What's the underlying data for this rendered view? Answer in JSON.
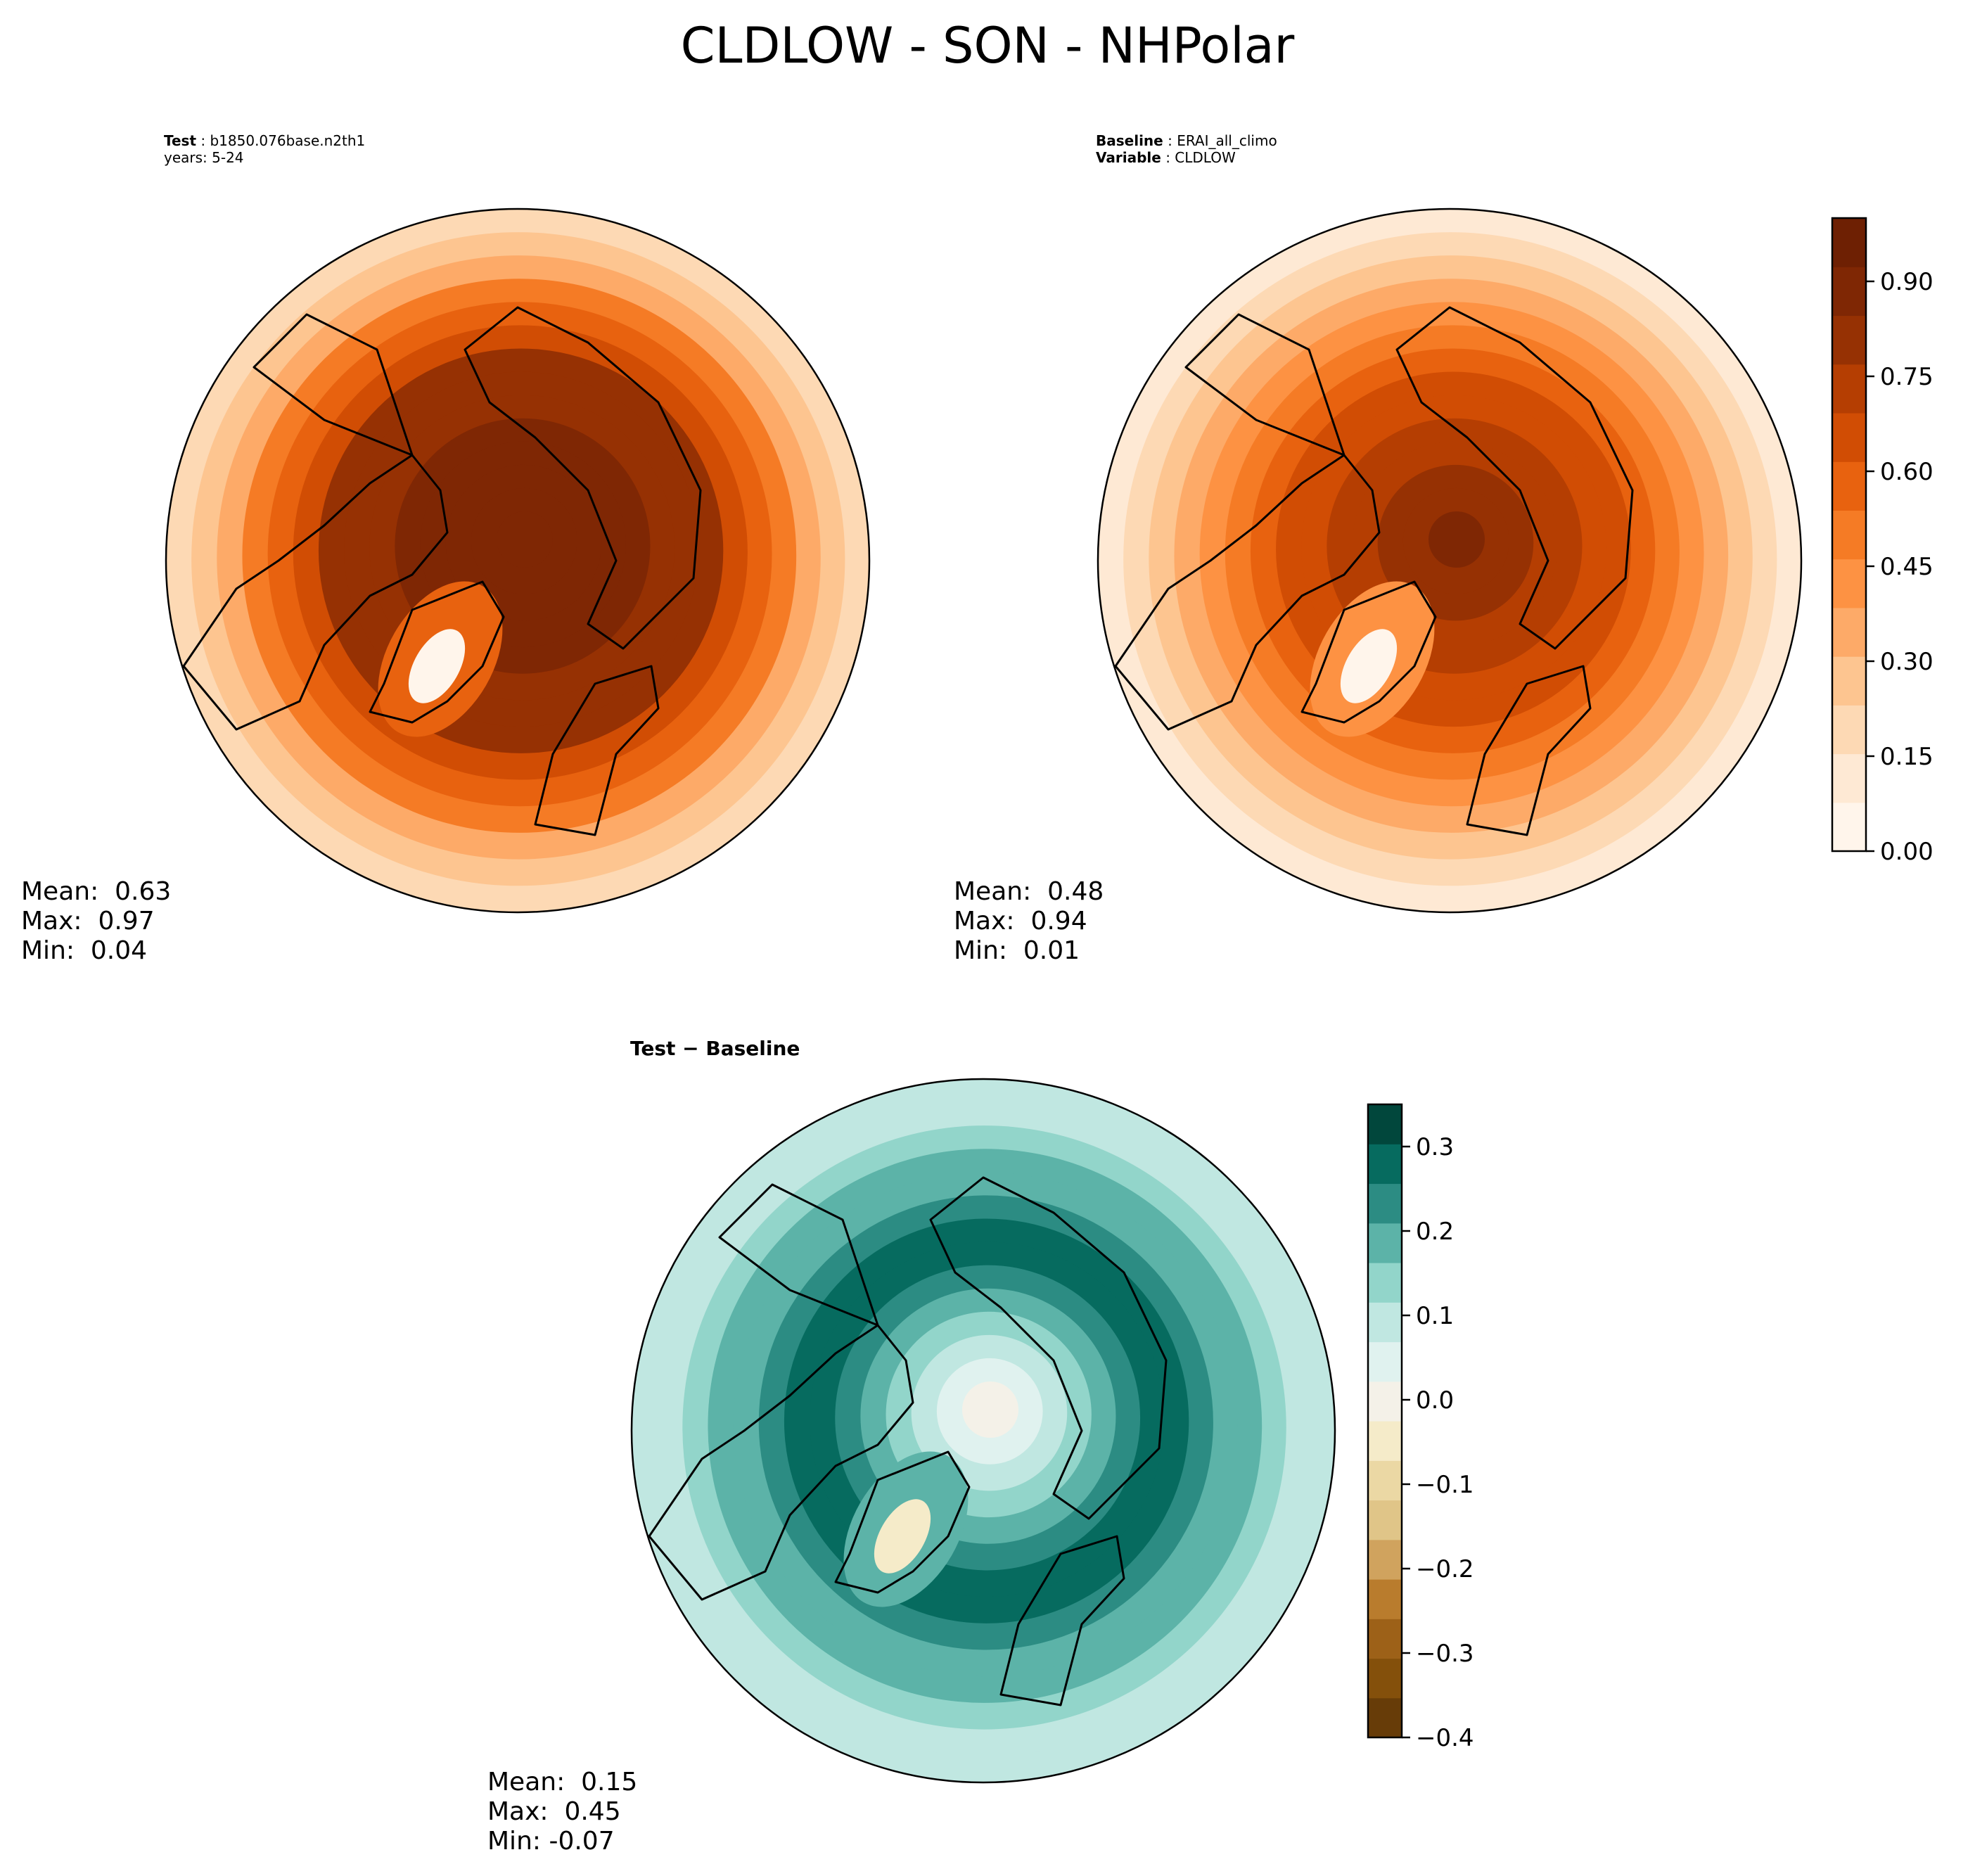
{
  "figure": {
    "title": "CLDLOW - SON - NHPolar"
  },
  "chart_data": [
    {
      "type": "heatmap",
      "projection": "north-polar-stereographic",
      "header": {
        "label1": "Test",
        "value1": "b1850.076base.n2th1",
        "line2": "years: 5-24"
      },
      "stats": {
        "mean": "Mean:  0.63",
        "max": "Max:  0.97",
        "min": "Min:  0.04"
      },
      "colormap": "Oranges",
      "field": {
        "pole_value": 0.86,
        "ring_value": 0.84,
        "edge_value": 0.18,
        "greenland_value": 0.04
      }
    },
    {
      "type": "heatmap",
      "projection": "north-polar-stereographic",
      "header": {
        "label1": "Baseline",
        "value1": "ERAI_all_climo",
        "label2": "Variable",
        "value2": "CLDLOW"
      },
      "stats": {
        "mean": "Mean:  0.48",
        "max": "Max:  0.94",
        "min": "Min:  0.01"
      },
      "colormap": "Oranges",
      "field": {
        "pole_value": 0.88,
        "ring_value": 0.62,
        "edge_value": 0.12,
        "greenland_value": 0.01
      }
    },
    {
      "type": "heatmap",
      "projection": "north-polar-stereographic",
      "header": {
        "title": "Test − Baseline"
      },
      "stats": {
        "mean": "Mean:  0.15",
        "max": "Max:  0.45",
        "min": "Min: -0.07"
      },
      "colormap": "BrBG",
      "field": {
        "pole_value": -0.02,
        "ring_value": 0.28,
        "edge_value": 0.08,
        "greenland_value": -0.07
      }
    }
  ],
  "colorbars": {
    "main": {
      "ticks": [
        "0.00",
        "0.15",
        "0.30",
        "0.45",
        "0.60",
        "0.75",
        "0.90"
      ],
      "tick_values": [
        0.0,
        0.15,
        0.3,
        0.45,
        0.6,
        0.75,
        0.9
      ],
      "range": [
        0.0,
        1.0
      ],
      "colors": [
        "#fff5eb",
        "#fee9d4",
        "#fdd9b4",
        "#fdc590",
        "#fdaa68",
        "#fd9243",
        "#f57b25",
        "#e8620f",
        "#d14d04",
        "#b53e02",
        "#963103",
        "#7f2704",
        "#6e2003"
      ]
    },
    "diff": {
      "ticks": [
        "0.3",
        "0.2",
        "0.1",
        "0.0",
        "−0.1",
        "−0.2",
        "−0.3",
        "−0.4"
      ],
      "tick_values": [
        0.3,
        0.2,
        0.1,
        0.0,
        -0.1,
        -0.2,
        -0.3,
        -0.4
      ],
      "range": [
        -0.4,
        0.35
      ],
      "colors": [
        "#673c08",
        "#84500b",
        "#9d6118",
        "#b97c2d",
        "#d0a35e",
        "#e0c588",
        "#ebd8a4",
        "#f5ebc9",
        "#f4f1e8",
        "#e0f2ef",
        "#c0e7e1",
        "#92d5ca",
        "#5cb3a8",
        "#2c8c83",
        "#066b5f",
        "#01473c"
      ]
    }
  }
}
